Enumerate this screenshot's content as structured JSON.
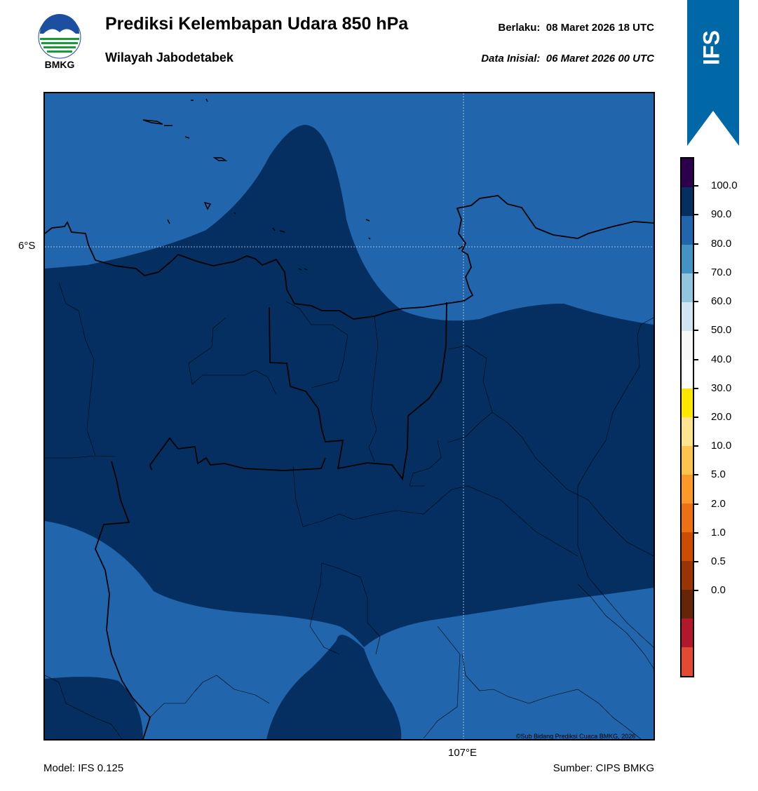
{
  "header": {
    "title": "Prediksi Kelembapan Udara 850 hPa",
    "subtitle": "Wilayah Jabodetabek",
    "valid_label": "Berlaku:",
    "valid_time": "08 Maret 2026 18 UTC",
    "init_label": "Data Inisial:",
    "init_time": "06 Maret 2026 00 UTC",
    "logo_text": "BMKG",
    "model_badge": "IFS"
  },
  "map": {
    "lat_label": "6°S",
    "lon_label": "107°E",
    "credit": "©Sub Bidang Prediksi Cuaca BMKG, 2026",
    "colors": {
      "band_80_90": "#2166ac",
      "band_90_100": "#062f61",
      "coastline": "#000000"
    }
  },
  "colorbar": {
    "labels": [
      "100.0",
      "90.0",
      "80.0",
      "70.0",
      "60.0",
      "50.0",
      "40.0",
      "30.0",
      "20.0",
      "10.0",
      "5.0",
      "2.0",
      "1.0",
      "0.5",
      "0.0"
    ],
    "colors": [
      "#2d004b",
      "#062f61",
      "#2166ac",
      "#4393c3",
      "#92c5de",
      "#d1e5f0",
      "#f7f7f7",
      "#ffffff",
      "#ffe600",
      "#fee391",
      "#fec44f",
      "#fe9929",
      "#ec7014",
      "#cc4c02",
      "#993404",
      "#662506",
      "#b2182b",
      "#e34a33"
    ]
  },
  "footer": {
    "model": "Model: IFS 0.125",
    "source": "Sumber: CIPS BMKG"
  }
}
